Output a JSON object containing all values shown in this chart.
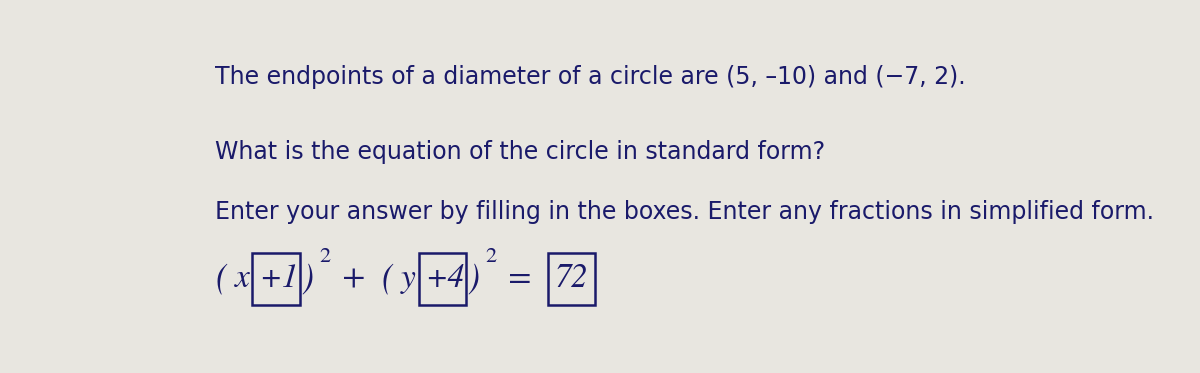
{
  "bg_color": "#e8e6e0",
  "top_strip_color": "#9090b8",
  "left_strip_color": "#9090b0",
  "text_color": "#1a1a6a",
  "line1": "The endpoints of a diameter of a circle are (5, –10) and (−7, 2).",
  "line2": "What is the equation of the circle in standard form?",
  "line3": "Enter your answer by filling in the boxes. Enter any fractions in simplified form.",
  "eq_x_letter": "x",
  "eq_x_box": "+1",
  "eq_y_letter": "y",
  "eq_y_box": "+4",
  "eq_rhs_box": "72",
  "box_color": "#1a1a6a",
  "box_fill": "#e8e6e0",
  "text_fontsize": 17,
  "eq_fontsize": 24
}
